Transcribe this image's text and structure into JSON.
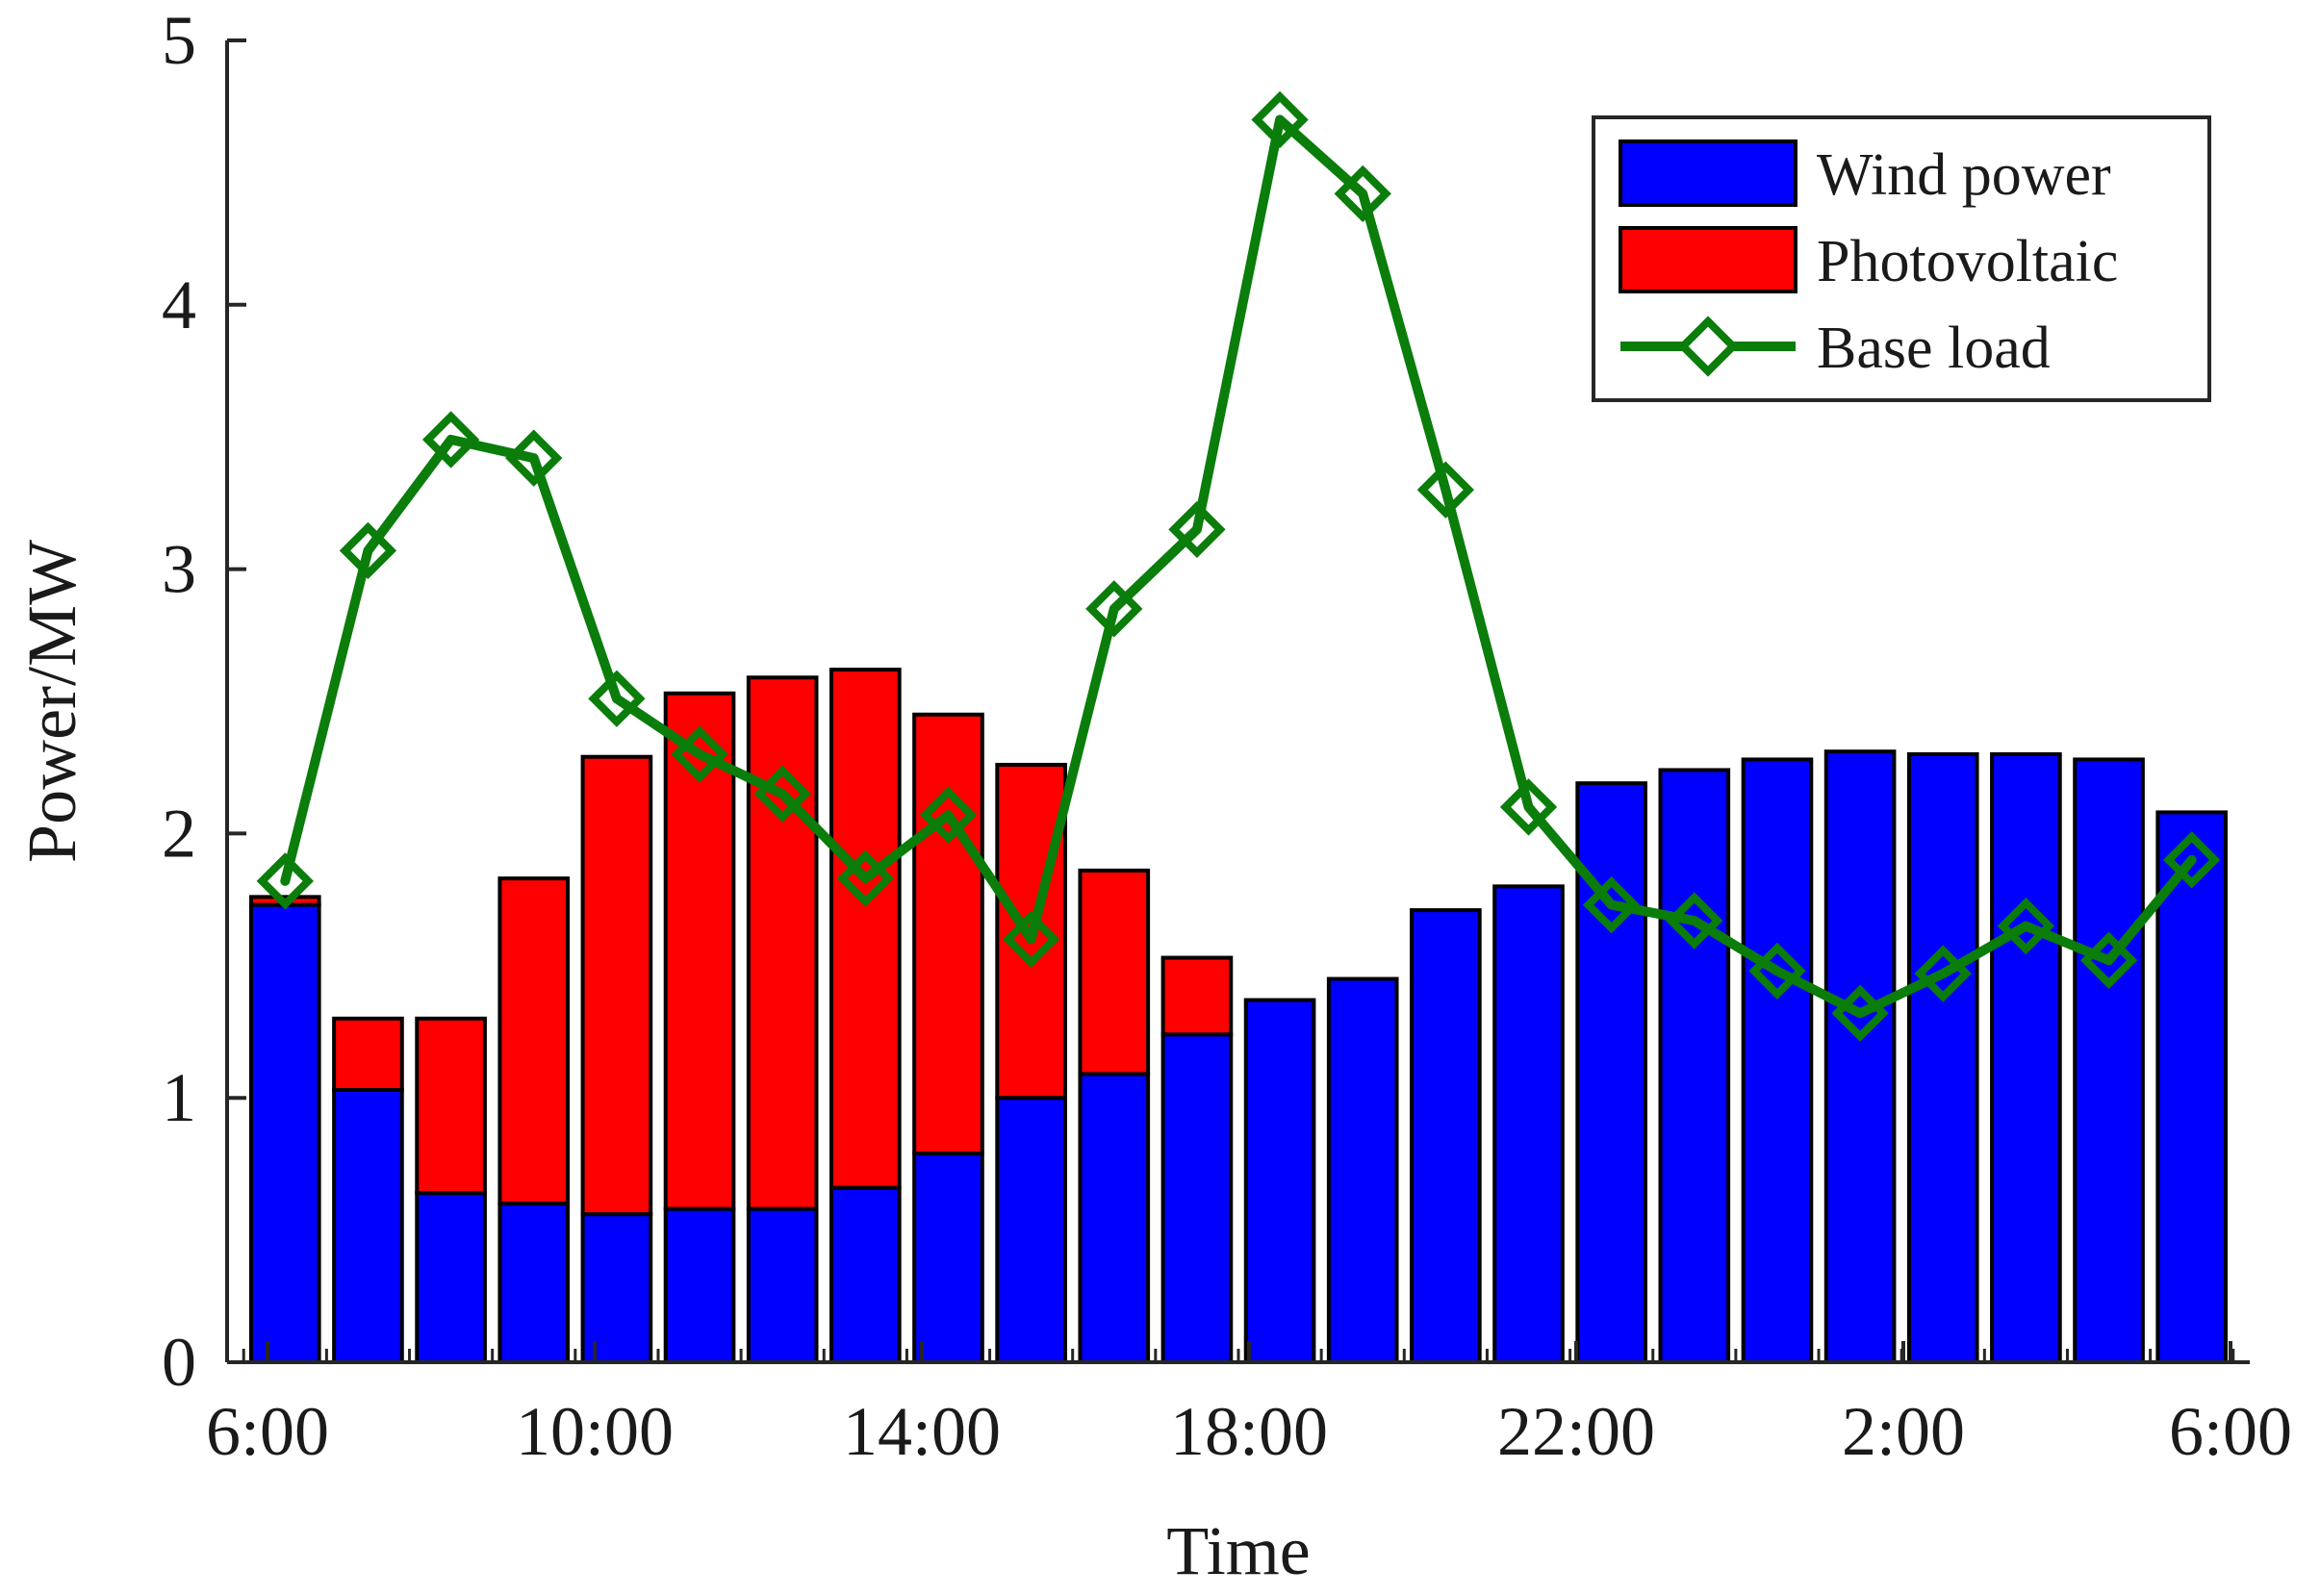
{
  "chart_data": {
    "type": "bar",
    "stacked": true,
    "xlabel": "Time",
    "ylabel": "Power/MW",
    "ylim": [
      0,
      5
    ],
    "yticks": [
      0,
      1,
      2,
      3,
      4,
      5
    ],
    "xticks": [
      "6:00",
      "10:00",
      "14:00",
      "18:00",
      "22:00",
      "2:00",
      "6:00"
    ],
    "hours": [
      1,
      2,
      3,
      4,
      5,
      6,
      7,
      8,
      9,
      10,
      11,
      12,
      13,
      14,
      15,
      16,
      17,
      18,
      19,
      20,
      21,
      22,
      23,
      24
    ],
    "grid": false,
    "legend_position": "top-right",
    "series": [
      {
        "name": "Wind power",
        "kind": "bar",
        "color": "#0000ff",
        "values": [
          1.73,
          1.03,
          0.64,
          0.6,
          0.56,
          0.58,
          0.58,
          0.66,
          0.79,
          1.0,
          1.09,
          1.24,
          1.37,
          1.45,
          1.71,
          1.8,
          2.19,
          2.24,
          2.28,
          2.31,
          2.3,
          2.3,
          2.28,
          2.08
        ]
      },
      {
        "name": "Photovoltaic",
        "kind": "bar",
        "color": "#ff0000",
        "values": [
          0.03,
          0.27,
          0.66,
          1.23,
          1.73,
          1.95,
          2.01,
          1.96,
          1.66,
          1.26,
          0.77,
          0.29,
          0,
          0,
          0,
          0,
          0,
          0,
          0,
          0,
          0,
          0,
          0,
          0
        ]
      },
      {
        "name": "Base load",
        "kind": "line",
        "color": "#0a7d0a",
        "marker": "diamond",
        "values": [
          1.82,
          3.07,
          3.49,
          3.42,
          2.51,
          2.3,
          2.15,
          1.83,
          2.07,
          1.6,
          2.85,
          3.15,
          4.7,
          4.42,
          3.3,
          2.1,
          1.73,
          1.67,
          1.48,
          1.32,
          1.47,
          1.65,
          1.52,
          1.9
        ]
      }
    ]
  }
}
